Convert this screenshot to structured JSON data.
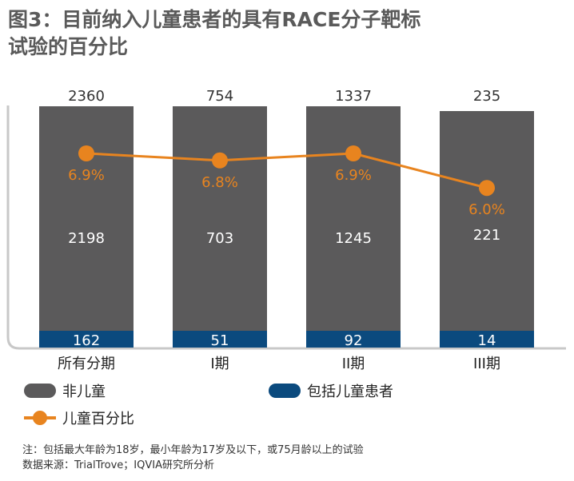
{
  "title_line1": "图3：目前纳入儿童患者的具有RACE分子靶标",
  "title_line2": "试验的百分比",
  "chart_data": {
    "type": "bar",
    "stacked": true,
    "categories": [
      "所有分期",
      "I期",
      "II期",
      "III期"
    ],
    "totals": [
      2360,
      754,
      1337,
      235
    ],
    "series": [
      {
        "name": "包括儿童患者",
        "values": [
          162,
          51,
          92,
          14
        ],
        "color": "#0b4a7e"
      },
      {
        "name": "非儿童",
        "values": [
          2198,
          703,
          1245,
          221
        ],
        "color": "#5b5a5b"
      }
    ],
    "line_series": {
      "name": "儿童百分比",
      "values": [
        6.9,
        6.8,
        6.9,
        6.0
      ],
      "labels": [
        "6.9%",
        "6.8%",
        "6.9%",
        "6.0%"
      ],
      "color": "#e8841f"
    },
    "legend_position": "bottom-left"
  },
  "legend": {
    "non_child": "非儿童",
    "with_child": "包括儿童患者",
    "child_pct": "儿童百分比"
  },
  "notes": {
    "line1": "注：包括最大年龄为18岁，最小年龄为17岁及以下，或75月龄以上的试验",
    "line2": "数据来源：TrialTrove；IQVIA研究所分析"
  }
}
